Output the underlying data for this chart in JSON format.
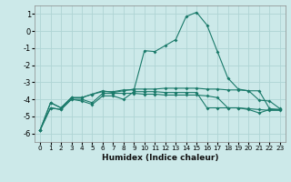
{
  "xlabel": "Humidex (Indice chaleur)",
  "background_color": "#cce9e9",
  "grid_color": "#afd4d4",
  "line_color": "#1a7a6a",
  "x_values": [
    0,
    1,
    2,
    3,
    4,
    5,
    6,
    7,
    8,
    9,
    10,
    11,
    12,
    13,
    14,
    15,
    16,
    17,
    18,
    19,
    20,
    21,
    22,
    23
  ],
  "series": [
    [
      -5.8,
      -4.2,
      -4.5,
      -3.9,
      -3.9,
      -3.7,
      -3.5,
      -3.6,
      -3.5,
      -3.4,
      -3.4,
      -3.4,
      -3.35,
      -3.35,
      -3.35,
      -3.35,
      -3.4,
      -3.4,
      -3.45,
      -3.45,
      -3.5,
      -3.5,
      -4.55,
      -4.6
    ],
    [
      -5.8,
      -4.5,
      -4.6,
      -4.0,
      -4.0,
      -4.2,
      -3.65,
      -3.65,
      -3.65,
      -3.65,
      -3.7,
      -3.7,
      -3.75,
      -3.75,
      -3.75,
      -3.75,
      -3.8,
      -3.9,
      -4.5,
      -4.5,
      -4.6,
      -4.8,
      -4.6,
      -4.6
    ],
    [
      -5.8,
      -4.5,
      -4.6,
      -4.0,
      -4.1,
      -4.3,
      -3.8,
      -3.8,
      -4.0,
      -3.55,
      -3.55,
      -3.55,
      -3.6,
      -3.6,
      -3.6,
      -3.6,
      -4.5,
      -4.5,
      -4.5,
      -4.5,
      -4.55,
      -4.6,
      -4.65,
      -4.65
    ],
    [
      -5.8,
      -4.2,
      -4.5,
      -3.9,
      -3.9,
      -3.7,
      -3.55,
      -3.55,
      -3.45,
      -3.45,
      -1.15,
      -1.2,
      -0.85,
      -0.5,
      0.85,
      1.1,
      0.35,
      -1.2,
      -2.75,
      -3.4,
      -3.5,
      -4.05,
      -4.1,
      -4.55
    ]
  ],
  "ylim": [
    -6.5,
    1.5
  ],
  "xlim": [
    -0.5,
    23.5
  ],
  "yticks": [
    -6,
    -5,
    -4,
    -3,
    -2,
    -1,
    0,
    1
  ],
  "xticks": [
    0,
    1,
    2,
    3,
    4,
    5,
    6,
    7,
    8,
    9,
    10,
    11,
    12,
    13,
    14,
    15,
    16,
    17,
    18,
    19,
    20,
    21,
    22,
    23
  ],
  "xlabel_fontsize": 6.5,
  "ytick_fontsize": 6.0,
  "xtick_fontsize": 5.2
}
